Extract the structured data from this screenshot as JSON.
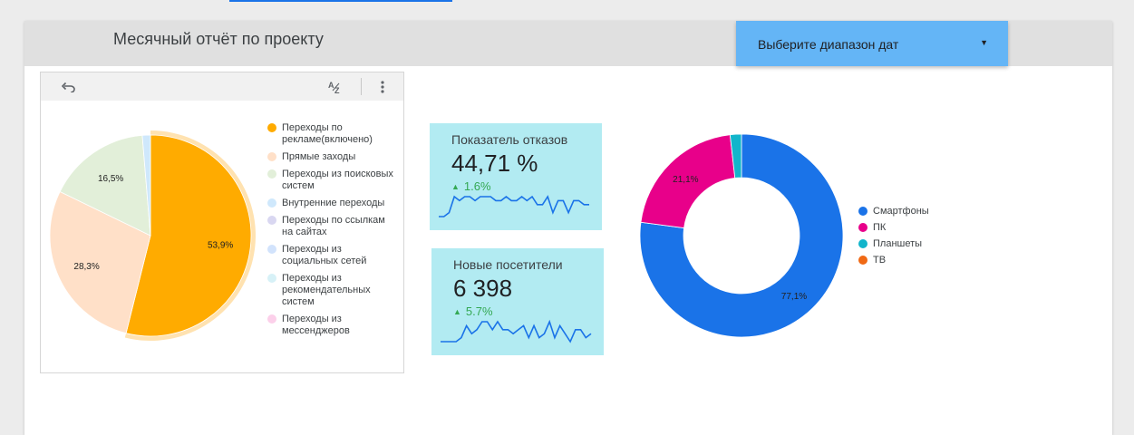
{
  "report": {
    "title": "Месячный отчёт по проекту",
    "date_picker": {
      "label": "Выберите диапазон дат"
    }
  },
  "pie_toolbar": {
    "icons": [
      "undo-icon",
      "sort-az-icon",
      "more-vert-icon"
    ]
  },
  "colors": {
    "accent": "#1a73e8",
    "header_bg": "#e0e0e0",
    "date_picker_bg": "#64b5f6",
    "kpi_bg": "#b2ebf2",
    "positive": "#34a853"
  },
  "chart_data": [
    {
      "type": "pie",
      "labels": [
        "Переходы по рекламе(включено)",
        "Прямые заходы",
        "Переходы из поисковых систем",
        "Внутренние переходы",
        "Переходы по ссылкам на сайтах",
        "Переходы из социальных сетей",
        "Переходы из рекомендательных систем",
        "Переходы из мессенджеров"
      ],
      "values": [
        53.9,
        28.3,
        16.5,
        1.3,
        0,
        0,
        0,
        0
      ],
      "value_labels": [
        "53,9%",
        "28,3%",
        "16,5%",
        "",
        "",
        "",
        "",
        ""
      ],
      "colors": [
        "#ffab00",
        "#ffe0c8",
        "#e2efd9",
        "#cfe8fc",
        "#d9d7f1",
        "#d2e3fc",
        "#d7f1f7",
        "#fcd0ea"
      ],
      "highlighted": "Переходы по рекламе(включено)",
      "legend": "right"
    },
    {
      "type": "scorecard",
      "title": "Показатель отказов",
      "value": "44,71 %",
      "delta": "1.6%",
      "spark": [
        3,
        3,
        4,
        8,
        7,
        8,
        8,
        7,
        8,
        8,
        8,
        7,
        7,
        8,
        7,
        7,
        8,
        7,
        8,
        6,
        6,
        8,
        4,
        7,
        7,
        4,
        7,
        7,
        6,
        6
      ]
    },
    {
      "type": "scorecard",
      "title": "Новые посетители",
      "value": "6 398",
      "delta": "5.7%",
      "spark": [
        2,
        2,
        2,
        2,
        3,
        6,
        4,
        5,
        7,
        7,
        5,
        7,
        5,
        5,
        4,
        5,
        6,
        3,
        6,
        3,
        4,
        7,
        3,
        6,
        4,
        2,
        5,
        5,
        3,
        4
      ]
    },
    {
      "type": "donut",
      "labels": [
        "Смартфоны",
        "ПК",
        "Планшеты",
        "ТВ"
      ],
      "values": [
        77.1,
        21.1,
        1.8,
        0
      ],
      "value_labels": [
        "77,1%",
        "21,1%",
        "",
        ""
      ],
      "colors": [
        "#1a73e8",
        "#e8008a",
        "#12b5cb",
        "#f06914"
      ],
      "legend": "right"
    }
  ]
}
